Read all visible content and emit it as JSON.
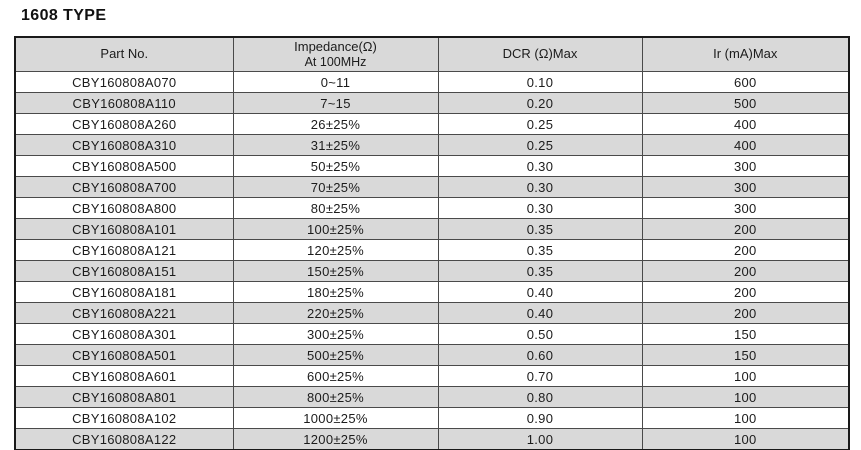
{
  "title": "1608 TYPE",
  "colors": {
    "row_alt_bg": "#d9d9d9",
    "header_bg": "#d9d9d9",
    "outer_border": "#1a1a1a",
    "inner_border": "#4a4a4a",
    "text": "#1c1c1c"
  },
  "table": {
    "columns": [
      {
        "line1": "Part No.",
        "line2": ""
      },
      {
        "line1": "Impedance(Ω)",
        "line2": "At 100MHz"
      },
      {
        "line1": "DCR (Ω)Max",
        "line2": ""
      },
      {
        "line1": "Ir (mA)Max",
        "line2": ""
      }
    ],
    "rows": [
      {
        "part_no": "CBY160808A070",
        "impedance": "0~11",
        "dcr": "0.10",
        "ir": "600"
      },
      {
        "part_no": "CBY160808A110",
        "impedance": "7~15",
        "dcr": "0.20",
        "ir": "500"
      },
      {
        "part_no": "CBY160808A260",
        "impedance": "26±25%",
        "dcr": "0.25",
        "ir": "400"
      },
      {
        "part_no": "CBY160808A310",
        "impedance": "31±25%",
        "dcr": "0.25",
        "ir": "400"
      },
      {
        "part_no": "CBY160808A500",
        "impedance": "50±25%",
        "dcr": "0.30",
        "ir": "300"
      },
      {
        "part_no": "CBY160808A700",
        "impedance": "70±25%",
        "dcr": "0.30",
        "ir": "300"
      },
      {
        "part_no": "CBY160808A800",
        "impedance": "80±25%",
        "dcr": "0.30",
        "ir": "300"
      },
      {
        "part_no": "CBY160808A101",
        "impedance": "100±25%",
        "dcr": "0.35",
        "ir": "200"
      },
      {
        "part_no": "CBY160808A121",
        "impedance": "120±25%",
        "dcr": "0.35",
        "ir": "200"
      },
      {
        "part_no": "CBY160808A151",
        "impedance": "150±25%",
        "dcr": "0.35",
        "ir": "200"
      },
      {
        "part_no": "CBY160808A181",
        "impedance": "180±25%",
        "dcr": "0.40",
        "ir": "200"
      },
      {
        "part_no": "CBY160808A221",
        "impedance": "220±25%",
        "dcr": "0.40",
        "ir": "200"
      },
      {
        "part_no": "CBY160808A301",
        "impedance": "300±25%",
        "dcr": "0.50",
        "ir": "150"
      },
      {
        "part_no": "CBY160808A501",
        "impedance": "500±25%",
        "dcr": "0.60",
        "ir": "150"
      },
      {
        "part_no": "CBY160808A601",
        "impedance": "600±25%",
        "dcr": "0.70",
        "ir": "100"
      },
      {
        "part_no": "CBY160808A801",
        "impedance": "800±25%",
        "dcr": "0.80",
        "ir": "100"
      },
      {
        "part_no": "CBY160808A102",
        "impedance": "1000±25%",
        "dcr": "0.90",
        "ir": "100"
      },
      {
        "part_no": "CBY160808A122",
        "impedance": "1200±25%",
        "dcr": "1.00",
        "ir": "100"
      }
    ]
  }
}
